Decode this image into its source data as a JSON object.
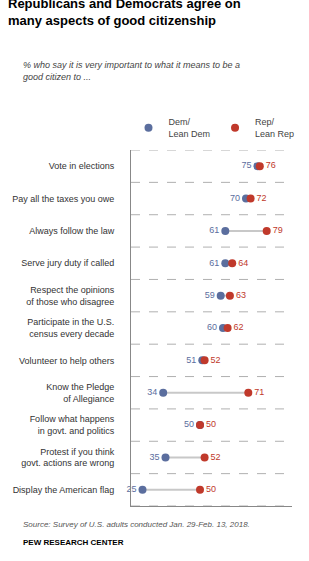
{
  "chart_data": {
    "type": "dumbbell",
    "title": "Republicans and Democrats agree on\nmany aspects of good citizenship",
    "subtitle": "% who say it is very important to what it means to be a\ngood citizen to ...",
    "source": "Source: Survey of U.S. adults conducted Jan. 29-Feb. 13, 2018.",
    "credit": "PEW RESEARCH CENTER",
    "categories": [
      "Vote in elections",
      "Pay all the taxes you owe",
      "Always follow the law",
      "Serve jury duty if called",
      "Respect the opinions\nof those who disagree",
      "Participate in the U.S.\ncensus every decade",
      "Volunteer to help others",
      "Know the Pledge\nof Allegiance",
      "Follow what happens\nin govt. and politics",
      "Protest if you think\ngovt. actions are wrong",
      "Display the American flag"
    ],
    "series": [
      {
        "name": "Dem/\nLean Dem",
        "color": "#5b6e9e",
        "values": [
          75,
          70,
          61,
          61,
          59,
          60,
          51,
          34,
          50,
          35,
          25
        ]
      },
      {
        "name": "Rep/\nLean Rep",
        "color": "#c0392b",
        "values": [
          76,
          72,
          79,
          64,
          63,
          62,
          52,
          71,
          50,
          52,
          50
        ]
      }
    ],
    "xlim": [
      20,
      90
    ],
    "xticks": [],
    "tick_labels": false,
    "data_labels": true,
    "legend": "top"
  }
}
